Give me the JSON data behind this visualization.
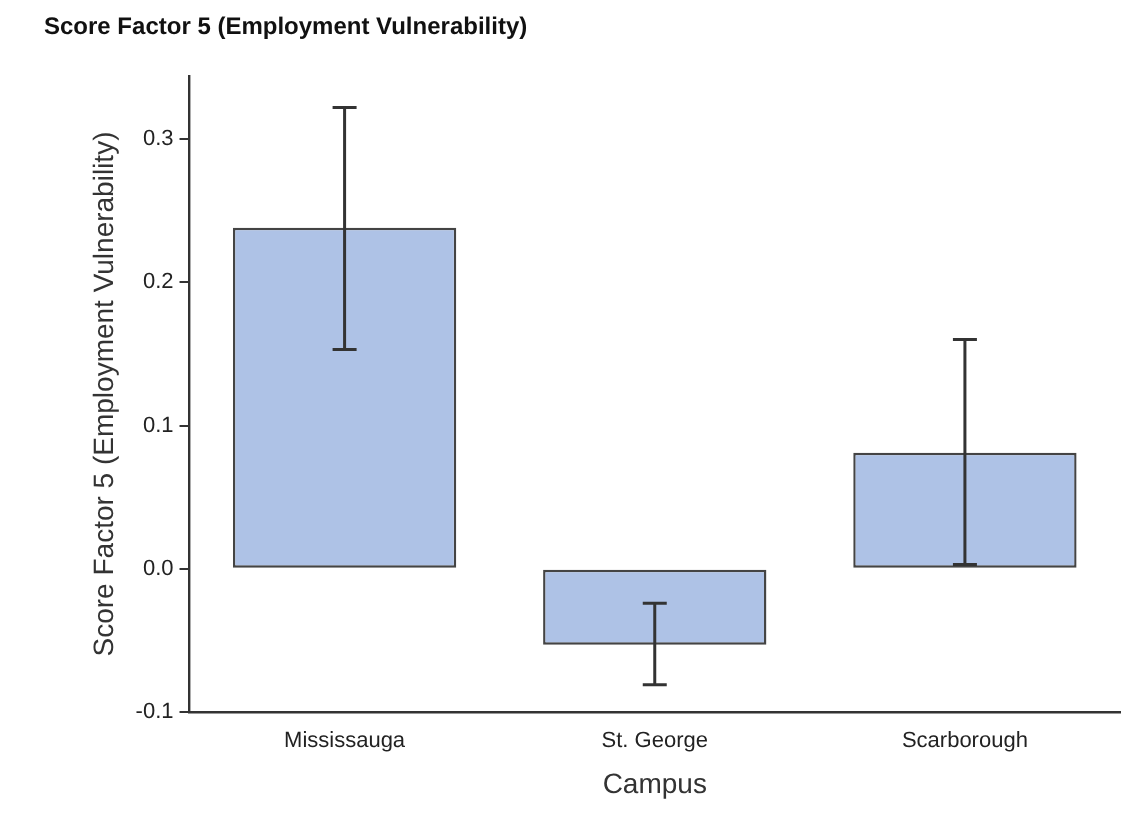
{
  "chart_data": {
    "type": "bar",
    "title": "Score Factor 5 (Employment Vulnerability)",
    "xlabel": "Campus",
    "ylabel": "Score Factor 5 (Employment Vulnerability)",
    "categories": [
      "Mississauga",
      "St. George",
      "Scarborough"
    ],
    "values": [
      0.238,
      -0.053,
      0.081
    ],
    "errors": [
      [
        0.153,
        0.322
      ],
      [
        -0.081,
        -0.024
      ],
      [
        0.003,
        0.16
      ]
    ],
    "color": "#aec2e6",
    "ylim": [
      -0.1,
      0.344
    ],
    "yticks": [
      -0.1,
      {
        "value": 0,
        "label": "0.0"
      },
      0.1,
      0.2,
      0.3
    ],
    "grid": false,
    "legend": false
  }
}
